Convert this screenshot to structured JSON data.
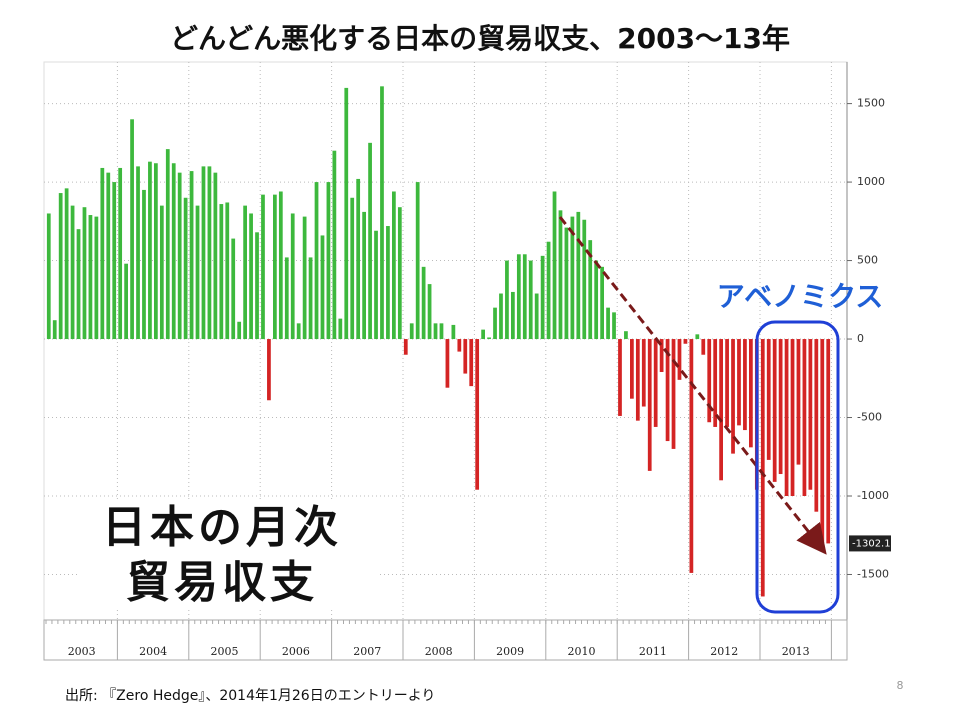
{
  "chart_data": {
    "type": "bar",
    "title": "どんどん悪化する日本の貿易収支、2003〜13年",
    "annotation": "アベノミクス",
    "label_lines": [
      "日本の月次",
      "貿易収支"
    ],
    "source": "出所: 『Zero Hedge』、2014年1月26日のエントリーより",
    "page_number": "8",
    "categories": [
      "2003",
      "2004",
      "2005",
      "2006",
      "2007",
      "2008",
      "2009",
      "2010",
      "2011",
      "2012",
      "2013"
    ],
    "values": [
      [
        800,
        120,
        930,
        960,
        850,
        700,
        840,
        790,
        780,
        1090,
        1060,
        1000
      ],
      [
        1090,
        480,
        1400,
        1100,
        950,
        1130,
        1120,
        850,
        1210,
        1120,
        1060,
        900
      ],
      [
        1070,
        850,
        1100,
        1100,
        1060,
        860,
        870,
        640,
        110,
        850,
        800,
        680
      ],
      [
        920,
        -390,
        920,
        940,
        520,
        800,
        100,
        780,
        520,
        1000,
        660,
        1000
      ],
      [
        1200,
        130,
        1600,
        900,
        1020,
        810,
        1250,
        690,
        1610,
        720,
        940,
        840
      ],
      [
        -100,
        100,
        1000,
        460,
        350,
        100,
        100,
        -310,
        90,
        -80,
        -220,
        -300
      ],
      [
        -960,
        60,
        10,
        200,
        290,
        500,
        300,
        540,
        540,
        500,
        290,
        530
      ],
      [
        620,
        940,
        820,
        710,
        780,
        810,
        760,
        630,
        500,
        460,
        200,
        170
      ],
      [
        -490,
        50,
        -380,
        -520,
        -430,
        -840,
        -560,
        -210,
        -650,
        -700,
        -260,
        -30
      ],
      [
        -1490,
        30,
        -100,
        -530,
        -560,
        -900,
        -560,
        -730,
        -550,
        -580,
        -690,
        -960
      ],
      [
        -1640,
        -770,
        -910,
        -860,
        -1000,
        -1000,
        -800,
        -1000,
        -960,
        -1100,
        -1300,
        -1302.113
      ]
    ],
    "last_value_label": "-1302.113",
    "colors": {
      "positive": "#3db83d",
      "negative": "#d42424"
    },
    "ylim": [
      -1790,
      1765
    ],
    "yticks": [
      -1500,
      -1000,
      -500,
      0,
      500,
      1000,
      1500
    ],
    "grid": true
  }
}
